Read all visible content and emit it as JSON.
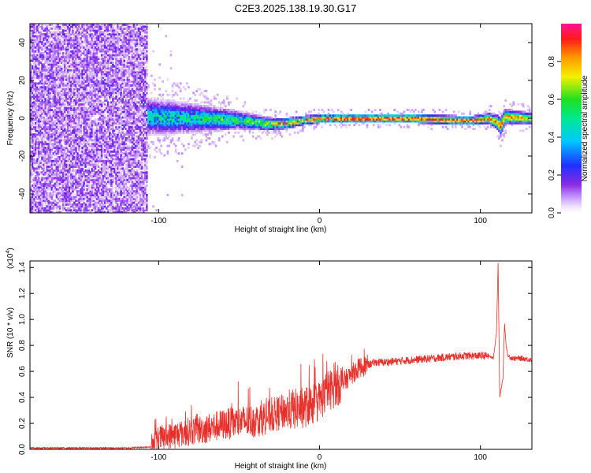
{
  "title": "C2E3.2025.138.19.30.G17",
  "colorbar": {
    "label": "Normalized spectral amplitude",
    "range": [
      0,
      1
    ],
    "ticks": [
      0.0,
      0.2,
      0.4,
      0.6,
      0.8
    ],
    "tick_labels": [
      "0.0",
      "0.2",
      "0.4",
      "0.6",
      "0.8"
    ],
    "colormap": "rainbow (white-violet-blue-cyan-green-yellow-orange-red-magenta)"
  },
  "chart_data": [
    {
      "type": "heatmap",
      "xlabel": "Height of straight line (km)",
      "ylabel": "Frequency (Hz)",
      "xlim": [
        -180,
        132
      ],
      "ylim": [
        -50,
        50
      ],
      "xticks": [
        -100,
        0,
        100
      ],
      "xtick_labels": [
        "-100",
        "0",
        "100"
      ],
      "yticks": [
        -40,
        -20,
        0,
        20,
        40
      ],
      "ytick_labels": [
        "-40",
        "-20",
        "0",
        "20",
        "40"
      ],
      "grid": false,
      "noise_region_x": [
        -180,
        -107
      ],
      "signal_band": {
        "x": [
          -107,
          -90,
          -70,
          -50,
          -40,
          -30,
          -20,
          -10,
          0,
          10,
          30,
          60,
          85,
          95,
          105,
          110,
          112,
          115,
          132
        ],
        "center_freq": [
          1,
          0.5,
          0,
          -1,
          -2,
          -3,
          -2.5,
          -1,
          0,
          0,
          0,
          0,
          -1,
          -1,
          0,
          -2,
          -4,
          1,
          0
        ],
        "half_width": [
          10,
          9,
          7,
          5,
          4,
          3.5,
          3,
          2.5,
          2.5,
          2.5,
          2.5,
          2.5,
          2.5,
          2.5,
          3,
          4,
          5,
          4,
          3
        ],
        "peak_amplitude": [
          0.5,
          0.55,
          0.6,
          0.65,
          0.75,
          0.85,
          0.95,
          0.98,
          1,
          0.98,
          0.98,
          0.98,
          1,
          0.95,
          0.95,
          0.9,
          0.95,
          0.9,
          0.85
        ]
      }
    },
    {
      "type": "line",
      "xlabel": "Height of straight line (km)",
      "ylabel": "SNR (10 * v/v)",
      "y_multiplier": "(x10⁴)",
      "y_multiplier_base": "(x10",
      "y_multiplier_exp": "4",
      "y_multiplier_close": ")",
      "xlim": [
        -180,
        132
      ],
      "ylim": [
        0,
        1.45
      ],
      "xticks": [
        -100,
        0,
        100
      ],
      "xtick_labels": [
        "-100",
        "0",
        "100"
      ],
      "yticks": [
        0,
        0.2,
        0.4,
        0.6,
        0.8,
        1.0,
        1.2,
        1.4
      ],
      "ytick_labels": [
        "0.0",
        "0.2",
        "0.4",
        "0.6",
        "0.8",
        "1.0",
        "1.2",
        "1.4"
      ],
      "grid": false,
      "color": "#e8302b",
      "series": [
        {
          "x": [
            -180,
            -160,
            -140,
            -120,
            -105,
            -100,
            -90,
            -80,
            -70,
            -60,
            -50,
            -40,
            -30,
            -20,
            -10,
            0,
            5,
            10,
            15,
            20,
            25,
            30,
            35,
            40,
            50,
            60,
            70,
            80,
            90,
            100,
            105,
            108,
            110,
            111,
            112,
            114,
            115,
            116,
            117,
            120,
            125,
            132
          ],
          "y": [
            0.01,
            0.01,
            0.01,
            0.01,
            0.02,
            0.08,
            0.11,
            0.14,
            0.16,
            0.19,
            0.21,
            0.22,
            0.26,
            0.3,
            0.32,
            0.37,
            0.45,
            0.48,
            0.52,
            0.58,
            0.63,
            0.65,
            0.67,
            0.67,
            0.68,
            0.69,
            0.7,
            0.71,
            0.72,
            0.72,
            0.72,
            0.7,
            0.9,
            1.43,
            0.4,
            0.55,
            0.97,
            0.8,
            0.72,
            0.7,
            0.7,
            0.69
          ]
        }
      ]
    }
  ]
}
